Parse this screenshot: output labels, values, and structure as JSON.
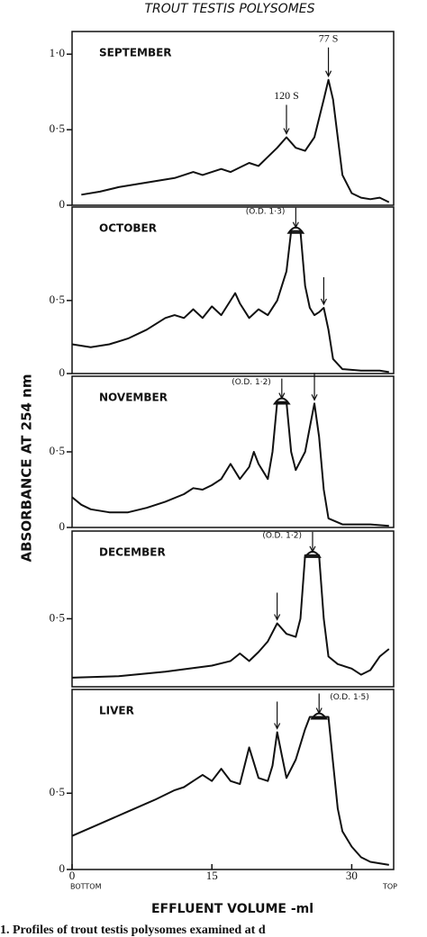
{
  "title": "TROUT TESTIS POLYSOMES",
  "y_label": "ABSORBANCE   AT   254 nm",
  "caption": "1. Profiles of trout testis polysomes examined at d",
  "chart_data": [
    {
      "type": "line",
      "label": "SEPTEMBER",
      "color": "#111111",
      "x": [
        1,
        3,
        5,
        7,
        9,
        11,
        12,
        13,
        14,
        15,
        16,
        17,
        18,
        19,
        20,
        21,
        22,
        23,
        24,
        25,
        26,
        27,
        27.5,
        28,
        28.5,
        29,
        30,
        31,
        32,
        33,
        34
      ],
      "values": [
        0.07,
        0.09,
        0.12,
        0.14,
        0.16,
        0.18,
        0.2,
        0.22,
        0.2,
        0.22,
        0.24,
        0.22,
        0.25,
        0.28,
        0.26,
        0.32,
        0.38,
        0.45,
        0.38,
        0.36,
        0.45,
        0.7,
        0.83,
        0.7,
        0.45,
        0.2,
        0.08,
        0.05,
        0.04,
        0.05,
        0.02
      ],
      "xlim": [
        0,
        34.5
      ],
      "ylim": [
        0,
        1.15
      ],
      "yticks": [
        0,
        {
          "value": 0.5,
          "label": "0·5"
        },
        {
          "value": 1,
          "label": "1·0"
        }
      ],
      "annotations": [
        {
          "label": "120 S",
          "x": 23
        },
        {
          "label": "77 S",
          "x": 27.5
        }
      ]
    },
    {
      "type": "line",
      "label": "OCTOBER",
      "color": "#111111",
      "x": [
        0,
        2,
        4,
        6,
        8,
        10,
        11,
        12,
        13,
        14,
        15,
        16,
        17,
        17.5,
        18,
        19,
        20,
        21,
        22,
        23,
        23.5,
        24.5,
        25,
        25.5,
        26,
        26.5,
        27,
        27.5,
        28,
        29,
        31,
        33,
        34
      ],
      "values": [
        0.2,
        0.18,
        0.2,
        0.24,
        0.3,
        0.38,
        0.4,
        0.38,
        0.44,
        0.38,
        0.46,
        0.4,
        0.5,
        0.55,
        0.48,
        0.38,
        0.44,
        0.4,
        0.5,
        0.7,
        0.975,
        0.975,
        0.6,
        0.45,
        0.4,
        0.42,
        0.45,
        0.3,
        0.1,
        0.03,
        0.02,
        0.02,
        0.01
      ],
      "xlim": [
        0,
        34.5
      ],
      "ylim": [
        0,
        1.14
      ],
      "yticks": [
        0,
        {
          "value": 0.5,
          "label": "0·5"
        }
      ],
      "annotations": [
        {
          "label": "(O.D. 1·3)",
          "x": 24
        }
      ],
      "arrows": [
        27
      ]
    },
    {
      "type": "line",
      "label": "NOVEMBER",
      "color": "#111111",
      "x": [
        0,
        1,
        2,
        4,
        6,
        8,
        10,
        12,
        13,
        14,
        15,
        16,
        17,
        18,
        19,
        19.5,
        20,
        21,
        21.5,
        22,
        23,
        23.5,
        24,
        25,
        26,
        26.5,
        27,
        27.5,
        29,
        32,
        34
      ],
      "values": [
        0.2,
        0.15,
        0.12,
        0.1,
        0.1,
        0.13,
        0.17,
        0.22,
        0.26,
        0.25,
        0.28,
        0.32,
        0.42,
        0.32,
        0.4,
        0.5,
        0.42,
        0.32,
        0.5,
        0.83,
        0.83,
        0.5,
        0.38,
        0.5,
        0.82,
        0.6,
        0.25,
        0.06,
        0.02,
        0.02,
        0.01
      ],
      "xlim": [
        0,
        34.5
      ],
      "ylim": [
        0,
        1.0
      ],
      "yticks": [
        0,
        {
          "value": 0.5,
          "label": "0·5"
        }
      ],
      "annotations": [
        {
          "label": "(O.D. 1·2)",
          "x": 22.5
        }
      ],
      "arrows": [
        26
      ]
    },
    {
      "type": "line",
      "label": "DECEMBER",
      "color": "#111111",
      "x": [
        0,
        5,
        10,
        15,
        17,
        18,
        19,
        20,
        21,
        22,
        23,
        24,
        24.5,
        25,
        26.5,
        27,
        27.5,
        28.5,
        30,
        31,
        32,
        33,
        34
      ],
      "values": [
        0.11,
        0.12,
        0.15,
        0.19,
        0.22,
        0.27,
        0.22,
        0.28,
        0.35,
        0.47,
        0.4,
        0.38,
        0.5,
        0.92,
        0.92,
        0.5,
        0.25,
        0.2,
        0.17,
        0.13,
        0.16,
        0.25,
        0.3
      ],
      "xlim": [
        0,
        34.5
      ],
      "ylim": [
        0.05,
        1.08
      ],
      "yticks": [
        {
          "value": 0.5,
          "label": "0·5"
        }
      ],
      "annotations": [
        {
          "label": "(O.D. 1·2)",
          "x": 25.8
        }
      ],
      "arrows": [
        22
      ]
    },
    {
      "type": "line",
      "label": "LIVER",
      "color": "#111111",
      "x": [
        0,
        3,
        6,
        9,
        11,
        12,
        13,
        14,
        15,
        16,
        17,
        18,
        19,
        20,
        21,
        21.5,
        22,
        22.5,
        23,
        24,
        25,
        25.5,
        27.5,
        28,
        28.5,
        29,
        30,
        31,
        32,
        34
      ],
      "values": [
        0.22,
        0.3,
        0.38,
        0.46,
        0.52,
        0.54,
        0.58,
        0.62,
        0.58,
        0.66,
        0.58,
        0.56,
        0.8,
        0.6,
        0.58,
        0.68,
        0.9,
        0.75,
        0.6,
        0.72,
        0.92,
        1.0,
        1.0,
        0.7,
        0.4,
        0.25,
        0.15,
        0.08,
        0.05,
        0.03
      ],
      "xlim": [
        0,
        34.5
      ],
      "ylim": [
        0,
        1.18
      ],
      "yticks": [
        0,
        {
          "value": 0.5,
          "label": "0·5"
        }
      ],
      "annotations": [
        {
          "label": "(O.D. 1·5)",
          "x": 26.5
        }
      ],
      "arrows": [
        22
      ],
      "xticks": [
        0,
        15,
        30
      ],
      "x_end_labels": [
        "BOTTOM",
        "TOP"
      ],
      "x_label": "EFFLUENT VOLUME -ml"
    }
  ]
}
